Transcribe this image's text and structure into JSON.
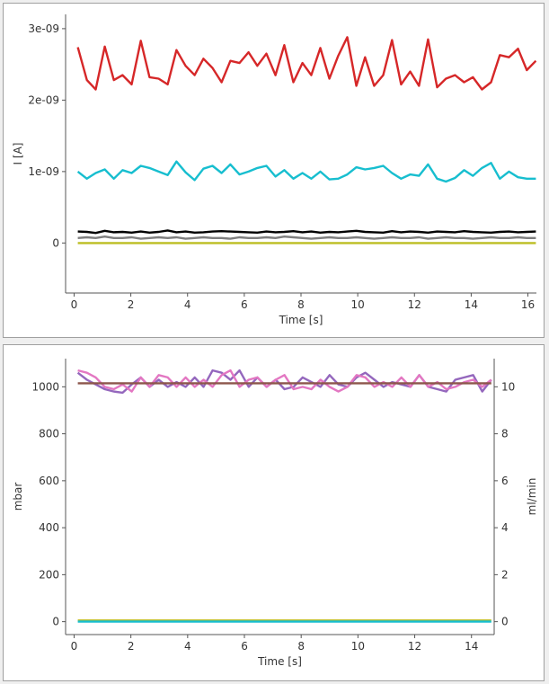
{
  "chart_data": [
    {
      "type": "line",
      "title": "",
      "xlabel": "Time [s]",
      "ylabel": "I [A]",
      "xlim": [
        -0.3,
        16.3
      ],
      "ylim": [
        -7e-10,
        3.2e-09
      ],
      "xticks": [
        0,
        2,
        4,
        6,
        8,
        10,
        12,
        14,
        16
      ],
      "yticks": [
        {
          "value": 0,
          "label": "0"
        },
        {
          "value": 1e-09,
          "label": "1e-09"
        },
        {
          "value": 2e-09,
          "label": "2e-09"
        },
        {
          "value": 3e-09,
          "label": "3e-09"
        }
      ],
      "grid": false,
      "legend": "none",
      "x": [
        0.13,
        0.45,
        0.76,
        1.08,
        1.4,
        1.71,
        2.03,
        2.35,
        2.66,
        2.98,
        3.3,
        3.61,
        3.93,
        4.25,
        4.56,
        4.88,
        5.2,
        5.51,
        5.83,
        6.15,
        6.46,
        6.78,
        7.1,
        7.41,
        7.73,
        8.05,
        8.36,
        8.68,
        9.0,
        9.31,
        9.63,
        9.95,
        10.26,
        10.58,
        10.9,
        11.21,
        11.53,
        11.85,
        12.16,
        12.48,
        12.8,
        13.11,
        13.43,
        13.75,
        14.06,
        14.38,
        14.7,
        15.01,
        15.33,
        15.65,
        15.96,
        16.28
      ],
      "series": [
        {
          "color": "#d62728",
          "values": [
            2.74e-09,
            2.28e-09,
            2.15e-09,
            2.75e-09,
            2.28e-09,
            2.35e-09,
            2.22e-09,
            2.83e-09,
            2.32e-09,
            2.3e-09,
            2.22e-09,
            2.7e-09,
            2.48e-09,
            2.35e-09,
            2.58e-09,
            2.45e-09,
            2.25e-09,
            2.55e-09,
            2.52e-09,
            2.67e-09,
            2.48e-09,
            2.65e-09,
            2.35e-09,
            2.77e-09,
            2.25e-09,
            2.52e-09,
            2.35e-09,
            2.73e-09,
            2.3e-09,
            2.62e-09,
            2.88e-09,
            2.2e-09,
            2.6e-09,
            2.2e-09,
            2.35e-09,
            2.84e-09,
            2.22e-09,
            2.4e-09,
            2.2e-09,
            2.85e-09,
            2.18e-09,
            2.3e-09,
            2.35e-09,
            2.25e-09,
            2.32e-09,
            2.15e-09,
            2.25e-09,
            2.63e-09,
            2.6e-09,
            2.72e-09,
            2.42e-09,
            2.55e-09
          ]
        },
        {
          "color": "#17becf",
          "values": [
            1e-09,
            9e-10,
            9.8e-10,
            1.03e-09,
            9e-10,
            1.02e-09,
            9.8e-10,
            1.08e-09,
            1.05e-09,
            1e-09,
            9.5e-10,
            1.14e-09,
            9.9e-10,
            8.8e-10,
            1.04e-09,
            1.08e-09,
            9.8e-10,
            1.1e-09,
            9.6e-10,
            1e-09,
            1.05e-09,
            1.08e-09,
            9.3e-10,
            1.02e-09,
            9e-10,
            9.8e-10,
            9e-10,
            1e-09,
            8.9e-10,
            9e-10,
            9.6e-10,
            1.06e-09,
            1.03e-09,
            1.05e-09,
            1.08e-09,
            9.8e-10,
            9e-10,
            9.6e-10,
            9.4e-10,
            1.1e-09,
            9e-10,
            8.6e-10,
            9.1e-10,
            1.02e-09,
            9.4e-10,
            1.05e-09,
            1.12e-09,
            9e-10,
            1e-09,
            9.2e-10,
            9e-10,
            9e-10
          ]
        },
        {
          "color": "#000000",
          "values": [
            1.6e-10,
            1.55e-10,
            1.4e-10,
            1.7e-10,
            1.5e-10,
            1.55e-10,
            1.45e-10,
            1.6e-10,
            1.45e-10,
            1.55e-10,
            1.75e-10,
            1.5e-10,
            1.6e-10,
            1.45e-10,
            1.5e-10,
            1.6e-10,
            1.65e-10,
            1.6e-10,
            1.55e-10,
            1.5e-10,
            1.45e-10,
            1.6e-10,
            1.5e-10,
            1.55e-10,
            1.65e-10,
            1.5e-10,
            1.6e-10,
            1.45e-10,
            1.55e-10,
            1.5e-10,
            1.6e-10,
            1.7e-10,
            1.55e-10,
            1.5e-10,
            1.45e-10,
            1.65e-10,
            1.5e-10,
            1.6e-10,
            1.55e-10,
            1.45e-10,
            1.6e-10,
            1.55e-10,
            1.5e-10,
            1.65e-10,
            1.55e-10,
            1.5e-10,
            1.45e-10,
            1.55e-10,
            1.6e-10,
            1.5e-10,
            1.55e-10,
            1.6e-10
          ]
        },
        {
          "color": "#7f7f7f",
          "values": [
            7e-11,
            8e-11,
            7e-11,
            9e-11,
            7e-11,
            7e-11,
            8e-11,
            6e-11,
            7e-11,
            8e-11,
            7e-11,
            8e-11,
            6e-11,
            7e-11,
            8e-11,
            7e-11,
            7e-11,
            6e-11,
            8e-11,
            7e-11,
            7e-11,
            8e-11,
            7e-11,
            9e-11,
            8e-11,
            7e-11,
            6e-11,
            7e-11,
            8e-11,
            7e-11,
            7e-11,
            8e-11,
            7e-11,
            6e-11,
            7e-11,
            8e-11,
            7e-11,
            7e-11,
            8e-11,
            6e-11,
            7e-11,
            8e-11,
            7e-11,
            7e-11,
            6e-11,
            7e-11,
            8e-11,
            7e-11,
            7e-11,
            8e-11,
            7e-11,
            7e-11
          ]
        },
        {
          "color": "#bcbd22",
          "values": [
            0,
            0,
            0,
            0,
            0,
            0,
            0,
            0,
            0,
            0,
            0,
            0,
            0,
            0,
            0,
            0,
            0,
            0,
            0,
            0,
            0,
            0,
            0,
            0,
            0,
            0,
            0,
            0,
            0,
            0,
            0,
            0,
            0,
            0,
            0,
            0,
            0,
            0,
            0,
            0,
            0,
            0,
            0,
            0,
            0,
            0,
            0,
            0,
            0,
            0,
            0,
            0
          ]
        }
      ]
    },
    {
      "type": "line",
      "title": "",
      "xlabel": "Time [s]",
      "ylabel": "mbar",
      "y2label": "ml/min",
      "xlim": [
        -0.3,
        14.8
      ],
      "ylim": [
        -55,
        1120
      ],
      "y2lim": [
        -0.55,
        11.2
      ],
      "xticks": [
        0,
        2,
        4,
        6,
        8,
        10,
        12,
        14
      ],
      "yticks": [
        0,
        200,
        400,
        600,
        800,
        1000
      ],
      "y2ticks": [
        0,
        2,
        4,
        6,
        8,
        10
      ],
      "grid": false,
      "legend": "none",
      "x": [
        0.13,
        0.45,
        0.76,
        1.08,
        1.4,
        1.71,
        2.03,
        2.35,
        2.66,
        2.98,
        3.3,
        3.61,
        3.93,
        4.25,
        4.56,
        4.88,
        5.2,
        5.51,
        5.83,
        6.15,
        6.46,
        6.78,
        7.1,
        7.41,
        7.73,
        8.05,
        8.36,
        8.68,
        9.0,
        9.31,
        9.63,
        9.95,
        10.26,
        10.58,
        10.9,
        11.21,
        11.53,
        11.85,
        12.16,
        12.48,
        12.8,
        13.11,
        13.43,
        13.75,
        14.06,
        14.38,
        14.7
      ],
      "series": [
        {
          "color": "#9467bd",
          "axis": "left",
          "values": [
            1060,
            1030,
            1010,
            990,
            980,
            975,
            1010,
            1040,
            1000,
            1030,
            1000,
            1020,
            1000,
            1040,
            1000,
            1070,
            1060,
            1030,
            1070,
            1000,
            1040,
            1000,
            1030,
            990,
            1000,
            1040,
            1020,
            1000,
            1050,
            1010,
            1000,
            1040,
            1060,
            1030,
            1000,
            1020,
            1010,
            1000,
            1050,
            1000,
            990,
            980,
            1030,
            1040,
            1050,
            980,
            1030
          ]
        },
        {
          "color": "#e377c2",
          "axis": "left",
          "values": [
            1070,
            1060,
            1040,
            1000,
            990,
            1010,
            980,
            1040,
            1000,
            1050,
            1040,
            1000,
            1040,
            1000,
            1030,
            1000,
            1050,
            1070,
            1000,
            1030,
            1040,
            1000,
            1030,
            1050,
            990,
            1000,
            990,
            1030,
            1000,
            980,
            1000,
            1050,
            1040,
            1000,
            1020,
            1000,
            1040,
            1000,
            1050,
            1000,
            1020,
            990,
            1000,
            1020,
            1030,
            1000,
            1030
          ]
        },
        {
          "color": "#8c564b",
          "axis": "left",
          "values": [
            1015,
            1015,
            1015,
            1015,
            1015,
            1015,
            1015,
            1015,
            1015,
            1015,
            1015,
            1015,
            1015,
            1015,
            1015,
            1015,
            1015,
            1015,
            1015,
            1015,
            1015,
            1015,
            1015,
            1015,
            1015,
            1015,
            1015,
            1015,
            1015,
            1015,
            1015,
            1015,
            1015,
            1015,
            1015,
            1015,
            1015,
            1015,
            1015,
            1015,
            1015,
            1015,
            1015,
            1015,
            1015,
            1015,
            1015
          ]
        },
        {
          "color": "#bcbd22",
          "axis": "left",
          "values": [
            5,
            5,
            5,
            5,
            5,
            5,
            5,
            5,
            5,
            5,
            5,
            5,
            5,
            5,
            5,
            5,
            5,
            5,
            5,
            5,
            5,
            5,
            5,
            5,
            5,
            5,
            5,
            5,
            5,
            5,
            5,
            5,
            5,
            5,
            5,
            5,
            5,
            5,
            5,
            5,
            5,
            5,
            5,
            5,
            5,
            5,
            5
          ]
        },
        {
          "color": "#17becf",
          "axis": "left",
          "values": [
            0,
            0,
            0,
            0,
            0,
            0,
            0,
            0,
            0,
            0,
            0,
            0,
            0,
            0,
            0,
            0,
            0,
            0,
            0,
            0,
            0,
            0,
            0,
            0,
            0,
            0,
            0,
            0,
            0,
            0,
            0,
            0,
            0,
            0,
            0,
            0,
            0,
            0,
            0,
            0,
            0,
            0,
            0,
            0,
            0,
            0,
            0
          ]
        }
      ]
    }
  ]
}
